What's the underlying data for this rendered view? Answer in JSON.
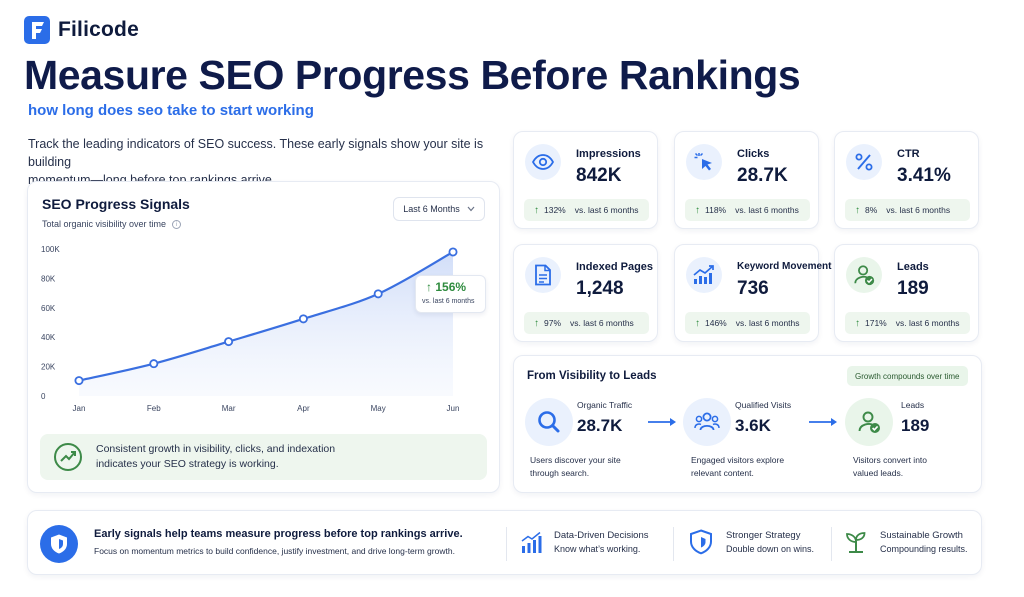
{
  "brand": {
    "name": "Filicode"
  },
  "header": {
    "title": "Measure SEO Progress Before Rankings",
    "subtitle": "how long does seo take to start working",
    "intro_line1": "Track the leading indicators of SEO success. These early signals show your site is building",
    "intro_line2": "momentum—long before top rankings arrive."
  },
  "chart_card": {
    "title": "SEO Progress Signals",
    "subtitle": "Total organic visibility over time",
    "range_label": "Last 6 Months",
    "callout_value": "156%",
    "callout_text": "vs. last 6 months",
    "banner_line1": "Consistent growth in visibility, clicks, and indexation",
    "banner_line2": "indicates your SEO strategy is working."
  },
  "chart_data": {
    "type": "area",
    "title": "SEO Progress Signals",
    "subtitle": "Total organic visibility over time",
    "x": [
      "Jan",
      "Feb",
      "Mar",
      "Apr",
      "May",
      "Jun"
    ],
    "series": [
      {
        "values": [
          10500,
          22000,
          37000,
          52500,
          69500,
          98000
        ]
      }
    ],
    "y_ticks": [
      0,
      20000,
      40000,
      60000,
      80000,
      100000
    ],
    "y_tick_labels": [
      "0",
      "20K",
      "40K",
      "60K",
      "80K",
      "100K"
    ],
    "ylim": [
      0,
      100000
    ],
    "grid": false,
    "legend": "none",
    "annotation": {
      "text": "156%",
      "sub": "vs. last 6 months",
      "position": "right"
    },
    "colors": {
      "line": "#3a6fe0",
      "fill": "#dfe8fb"
    }
  },
  "metrics": [
    {
      "icon": "eye-icon",
      "label": "Impressions",
      "value": "842K",
      "change": "132%",
      "change_text": "vs. last 6 months"
    },
    {
      "icon": "click-cursor-icon",
      "label": "Clicks",
      "value": "28.7K",
      "change": "118%",
      "change_text": "vs. last 6 months"
    },
    {
      "icon": "percent-icon",
      "label": "CTR",
      "value": "3.41%",
      "change": "8%",
      "change_text": "vs. last 6 months"
    },
    {
      "icon": "document-icon",
      "label": "Indexed Pages",
      "value": "1,248",
      "change": "97%",
      "change_text": "vs. last 6 months"
    },
    {
      "icon": "trending-up-chart-icon",
      "label": "Keyword Movement",
      "value": "736",
      "change": "146%",
      "change_text": "vs. last 6 months"
    },
    {
      "icon": "user-check-icon",
      "label": "Leads",
      "value": "189",
      "change": "171%",
      "change_text": "vs. last 6 months"
    }
  ],
  "funnel": {
    "title": "From Visibility to Leads",
    "tag": "Growth compounds over time",
    "steps": [
      {
        "icon": "magnifier-icon",
        "label": "Organic Traffic",
        "value": "28.7K",
        "desc1": "Users discover your site",
        "desc2": "through search."
      },
      {
        "icon": "users-icon",
        "label": "Qualified Visits",
        "value": "3.6K",
        "desc1": "Engaged visitors explore",
        "desc2": "relevant content."
      },
      {
        "icon": "user-check-icon",
        "label": "Leads",
        "value": "189",
        "desc1": "Visitors convert into",
        "desc2": "valued leads."
      }
    ]
  },
  "bottom": {
    "title": "Early signals help teams measure progress before top rankings arrive.",
    "desc": "Focus on momentum metrics to build confidence, justify investment, and drive long-term growth.",
    "features": [
      {
        "icon": "bar-chart-icon",
        "title": "Data-Driven Decisions",
        "sub": "Know what’s working."
      },
      {
        "icon": "shield-icon",
        "title": "Stronger Strategy",
        "sub": "Double down on wins."
      },
      {
        "icon": "sprout-icon",
        "title": "Sustainable Growth",
        "sub": "Compounding results."
      }
    ]
  },
  "colors": {
    "primary": "#2b6de8",
    "navy": "#0f1b4a",
    "green": "#2e8b3e",
    "green_bg": "#eef6ee"
  }
}
